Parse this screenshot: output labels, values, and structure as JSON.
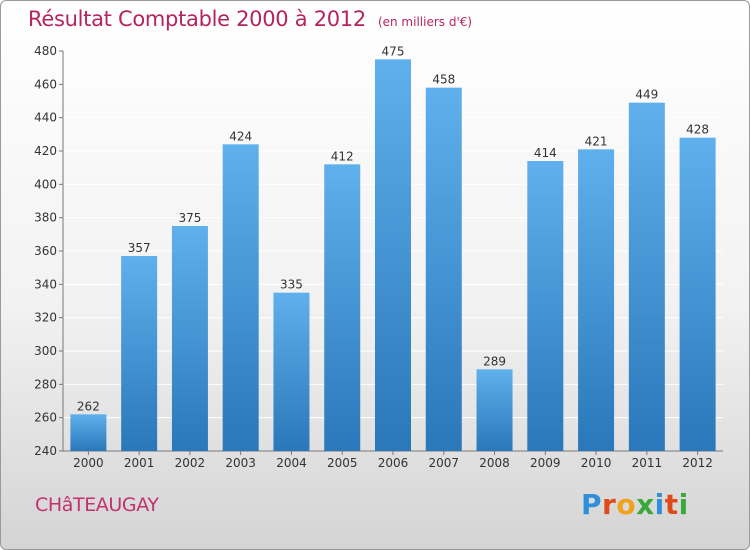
{
  "title": "Résultat Comptable 2000 à 2012",
  "subtitle": "(en milliers d'€)",
  "place": "CHâTEAUGAY",
  "brand": {
    "text": "Proxiti",
    "colors": [
      "#2f8fd8",
      "#e04a18",
      "#f0a21a",
      "#3aa83a",
      "#2f8fd8",
      "#e04a18",
      "#3aa83a"
    ]
  },
  "colors": {
    "bar_top": "#5fb0ec",
    "bar_bottom": "#2a77b9",
    "grid": "#ffffff",
    "axis_text": "#333333"
  },
  "chart_data": {
    "type": "bar",
    "categories": [
      "2000",
      "2001",
      "2002",
      "2003",
      "2004",
      "2005",
      "2006",
      "2007",
      "2008",
      "2009",
      "2010",
      "2011",
      "2012"
    ],
    "values": [
      262,
      357,
      375,
      424,
      335,
      412,
      475,
      458,
      289,
      414,
      421,
      449,
      428
    ],
    "ylim": [
      240,
      480
    ],
    "yticks": [
      240,
      260,
      280,
      300,
      320,
      340,
      360,
      380,
      400,
      420,
      440,
      460,
      480
    ],
    "grid": true,
    "data_labels": true
  }
}
